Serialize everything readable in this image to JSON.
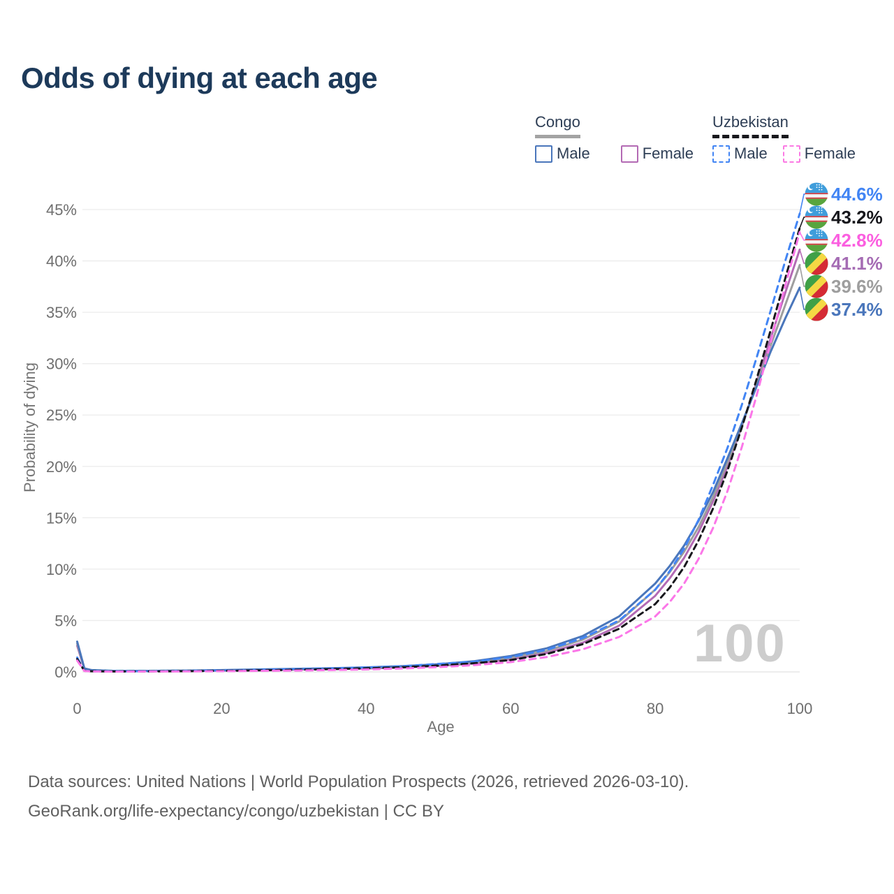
{
  "title": "Odds of dying at each age",
  "colors": {
    "title_text": "#1d3a5a",
    "axis_text": "#6f6f6f",
    "gridline": "#ececec",
    "watermark": "#cdcdcd",
    "footer_text": "#606060"
  },
  "legend": {
    "groups": [
      {
        "label": "Congo",
        "line_style": "solid",
        "line_color": "#a3a3a3",
        "items": [
          {
            "label": "Male",
            "color": "#4a76bb",
            "dashed": false
          },
          {
            "label": "Female",
            "color": "#b36ab4",
            "dashed": false
          }
        ]
      },
      {
        "label": "Uzbekistan",
        "line_style": "dashed",
        "line_color": "#17171c",
        "items": [
          {
            "label": "Male",
            "color": "#4285f4",
            "dashed": true
          },
          {
            "label": "Female",
            "color": "#fb7ae4",
            "dashed": true
          }
        ]
      }
    ]
  },
  "watermark_age": "100",
  "footer": {
    "line1": "Data sources: United Nations | World Population Prospects (2026, retrieved 2026-03-10).",
    "line2": "GeoRank.org/life-expectancy/congo/uzbekistan | CC BY"
  },
  "chart_data": {
    "type": "line",
    "title": "Odds of dying at each age",
    "xlabel": "Age",
    "ylabel": "Probability of dying",
    "xlim": [
      0,
      100
    ],
    "ylim_pct": [
      0,
      45
    ],
    "xticks": [
      0,
      20,
      40,
      60,
      80,
      100
    ],
    "yticks_pct": [
      0,
      5,
      10,
      15,
      20,
      25,
      30,
      35,
      40,
      45
    ],
    "grid": "horizontal",
    "legend_position": "top-right",
    "ages": [
      0,
      1,
      2,
      5,
      10,
      15,
      20,
      25,
      30,
      35,
      40,
      45,
      50,
      55,
      60,
      65,
      70,
      75,
      80,
      82,
      84,
      86,
      88,
      90,
      92,
      94,
      96,
      98,
      100
    ],
    "series": [
      {
        "id": "congo-female",
        "name": "Congo Female",
        "country": "Congo",
        "sex": "female",
        "color": "#b36ab4",
        "dashed": false,
        "flag": "congo",
        "end_label": "41.1%",
        "label_color": "#a56cb4",
        "label_slot": 3,
        "values_pct": [
          2.55,
          0.3,
          0.15,
          0.08,
          0.08,
          0.1,
          0.13,
          0.17,
          0.22,
          0.27,
          0.33,
          0.43,
          0.58,
          0.82,
          1.22,
          1.85,
          2.85,
          4.5,
          7.4,
          9.1,
          11.1,
          13.6,
          16.6,
          20.0,
          23.9,
          28.1,
          32.5,
          36.9,
          41.1
        ]
      },
      {
        "id": "congo-all",
        "name": "Congo Both sexes",
        "country": "Congo",
        "sex": "both",
        "color": "#9e9e9e",
        "dashed": false,
        "flag": "congo",
        "end_label": "39.6%",
        "label_color": "#9e9e9e",
        "label_slot": 4,
        "values_pct": [
          2.75,
          0.32,
          0.16,
          0.09,
          0.09,
          0.12,
          0.16,
          0.21,
          0.27,
          0.32,
          0.39,
          0.5,
          0.67,
          0.93,
          1.38,
          2.05,
          3.15,
          4.9,
          8.0,
          9.7,
          11.7,
          14.1,
          17.0,
          20.4,
          24.0,
          27.9,
          31.8,
          35.7,
          39.6
        ]
      },
      {
        "id": "congo-male",
        "name": "Congo Male",
        "country": "Congo",
        "sex": "male",
        "color": "#4a76bb",
        "dashed": false,
        "flag": "congo",
        "end_label": "37.4%",
        "label_color": "#4a76bb",
        "label_slot": 5,
        "values_pct": [
          2.95,
          0.35,
          0.18,
          0.1,
          0.1,
          0.13,
          0.18,
          0.24,
          0.3,
          0.36,
          0.44,
          0.56,
          0.75,
          1.05,
          1.55,
          2.3,
          3.5,
          5.4,
          8.6,
          10.3,
          12.3,
          14.7,
          17.5,
          20.8,
          24.2,
          27.7,
          31.2,
          34.4,
          37.4
        ]
      },
      {
        "id": "uzbekistan-male",
        "name": "Uzbekistan Male",
        "country": "Uzbekistan",
        "sex": "male",
        "color": "#4285f4",
        "dashed": true,
        "flag": "uzbekistan",
        "end_label": "44.6%",
        "label_color": "#4285f4",
        "label_slot": 0,
        "values_pct": [
          1.4,
          0.12,
          0.07,
          0.05,
          0.06,
          0.09,
          0.14,
          0.2,
          0.27,
          0.35,
          0.42,
          0.55,
          0.78,
          1.0,
          1.45,
          2.15,
          3.3,
          5.0,
          8.0,
          9.8,
          12.0,
          14.8,
          18.2,
          21.8,
          26.0,
          30.5,
          35.2,
          40.0,
          44.6
        ]
      },
      {
        "id": "uzbekistan-all",
        "name": "Uzbekistan Both sexes",
        "country": "Uzbekistan",
        "sex": "both",
        "color": "#17171c",
        "dashed": true,
        "flag": "uzbekistan",
        "end_label": "43.2%",
        "label_color": "#17171c",
        "label_slot": 1,
        "values_pct": [
          1.25,
          0.1,
          0.06,
          0.04,
          0.05,
          0.07,
          0.1,
          0.15,
          0.2,
          0.27,
          0.35,
          0.45,
          0.62,
          0.85,
          1.15,
          1.75,
          2.7,
          4.2,
          6.6,
          8.2,
          10.2,
          12.8,
          15.9,
          19.6,
          23.8,
          28.4,
          33.3,
          38.3,
          43.2
        ]
      },
      {
        "id": "uzbekistan-female",
        "name": "Uzbekistan Female",
        "country": "Uzbekistan",
        "sex": "female",
        "color": "#fb77e8",
        "dashed": true,
        "flag": "uzbekistan",
        "end_label": "42.8%",
        "label_color": "#fb5fe0",
        "label_slot": 2,
        "values_pct": [
          1.1,
          0.09,
          0.05,
          0.03,
          0.04,
          0.05,
          0.07,
          0.1,
          0.13,
          0.18,
          0.24,
          0.33,
          0.47,
          0.66,
          0.95,
          1.45,
          2.2,
          3.4,
          5.4,
          6.8,
          8.6,
          11.0,
          14.0,
          17.6,
          21.9,
          26.8,
          32.1,
          37.6,
          42.8
        ]
      }
    ]
  }
}
